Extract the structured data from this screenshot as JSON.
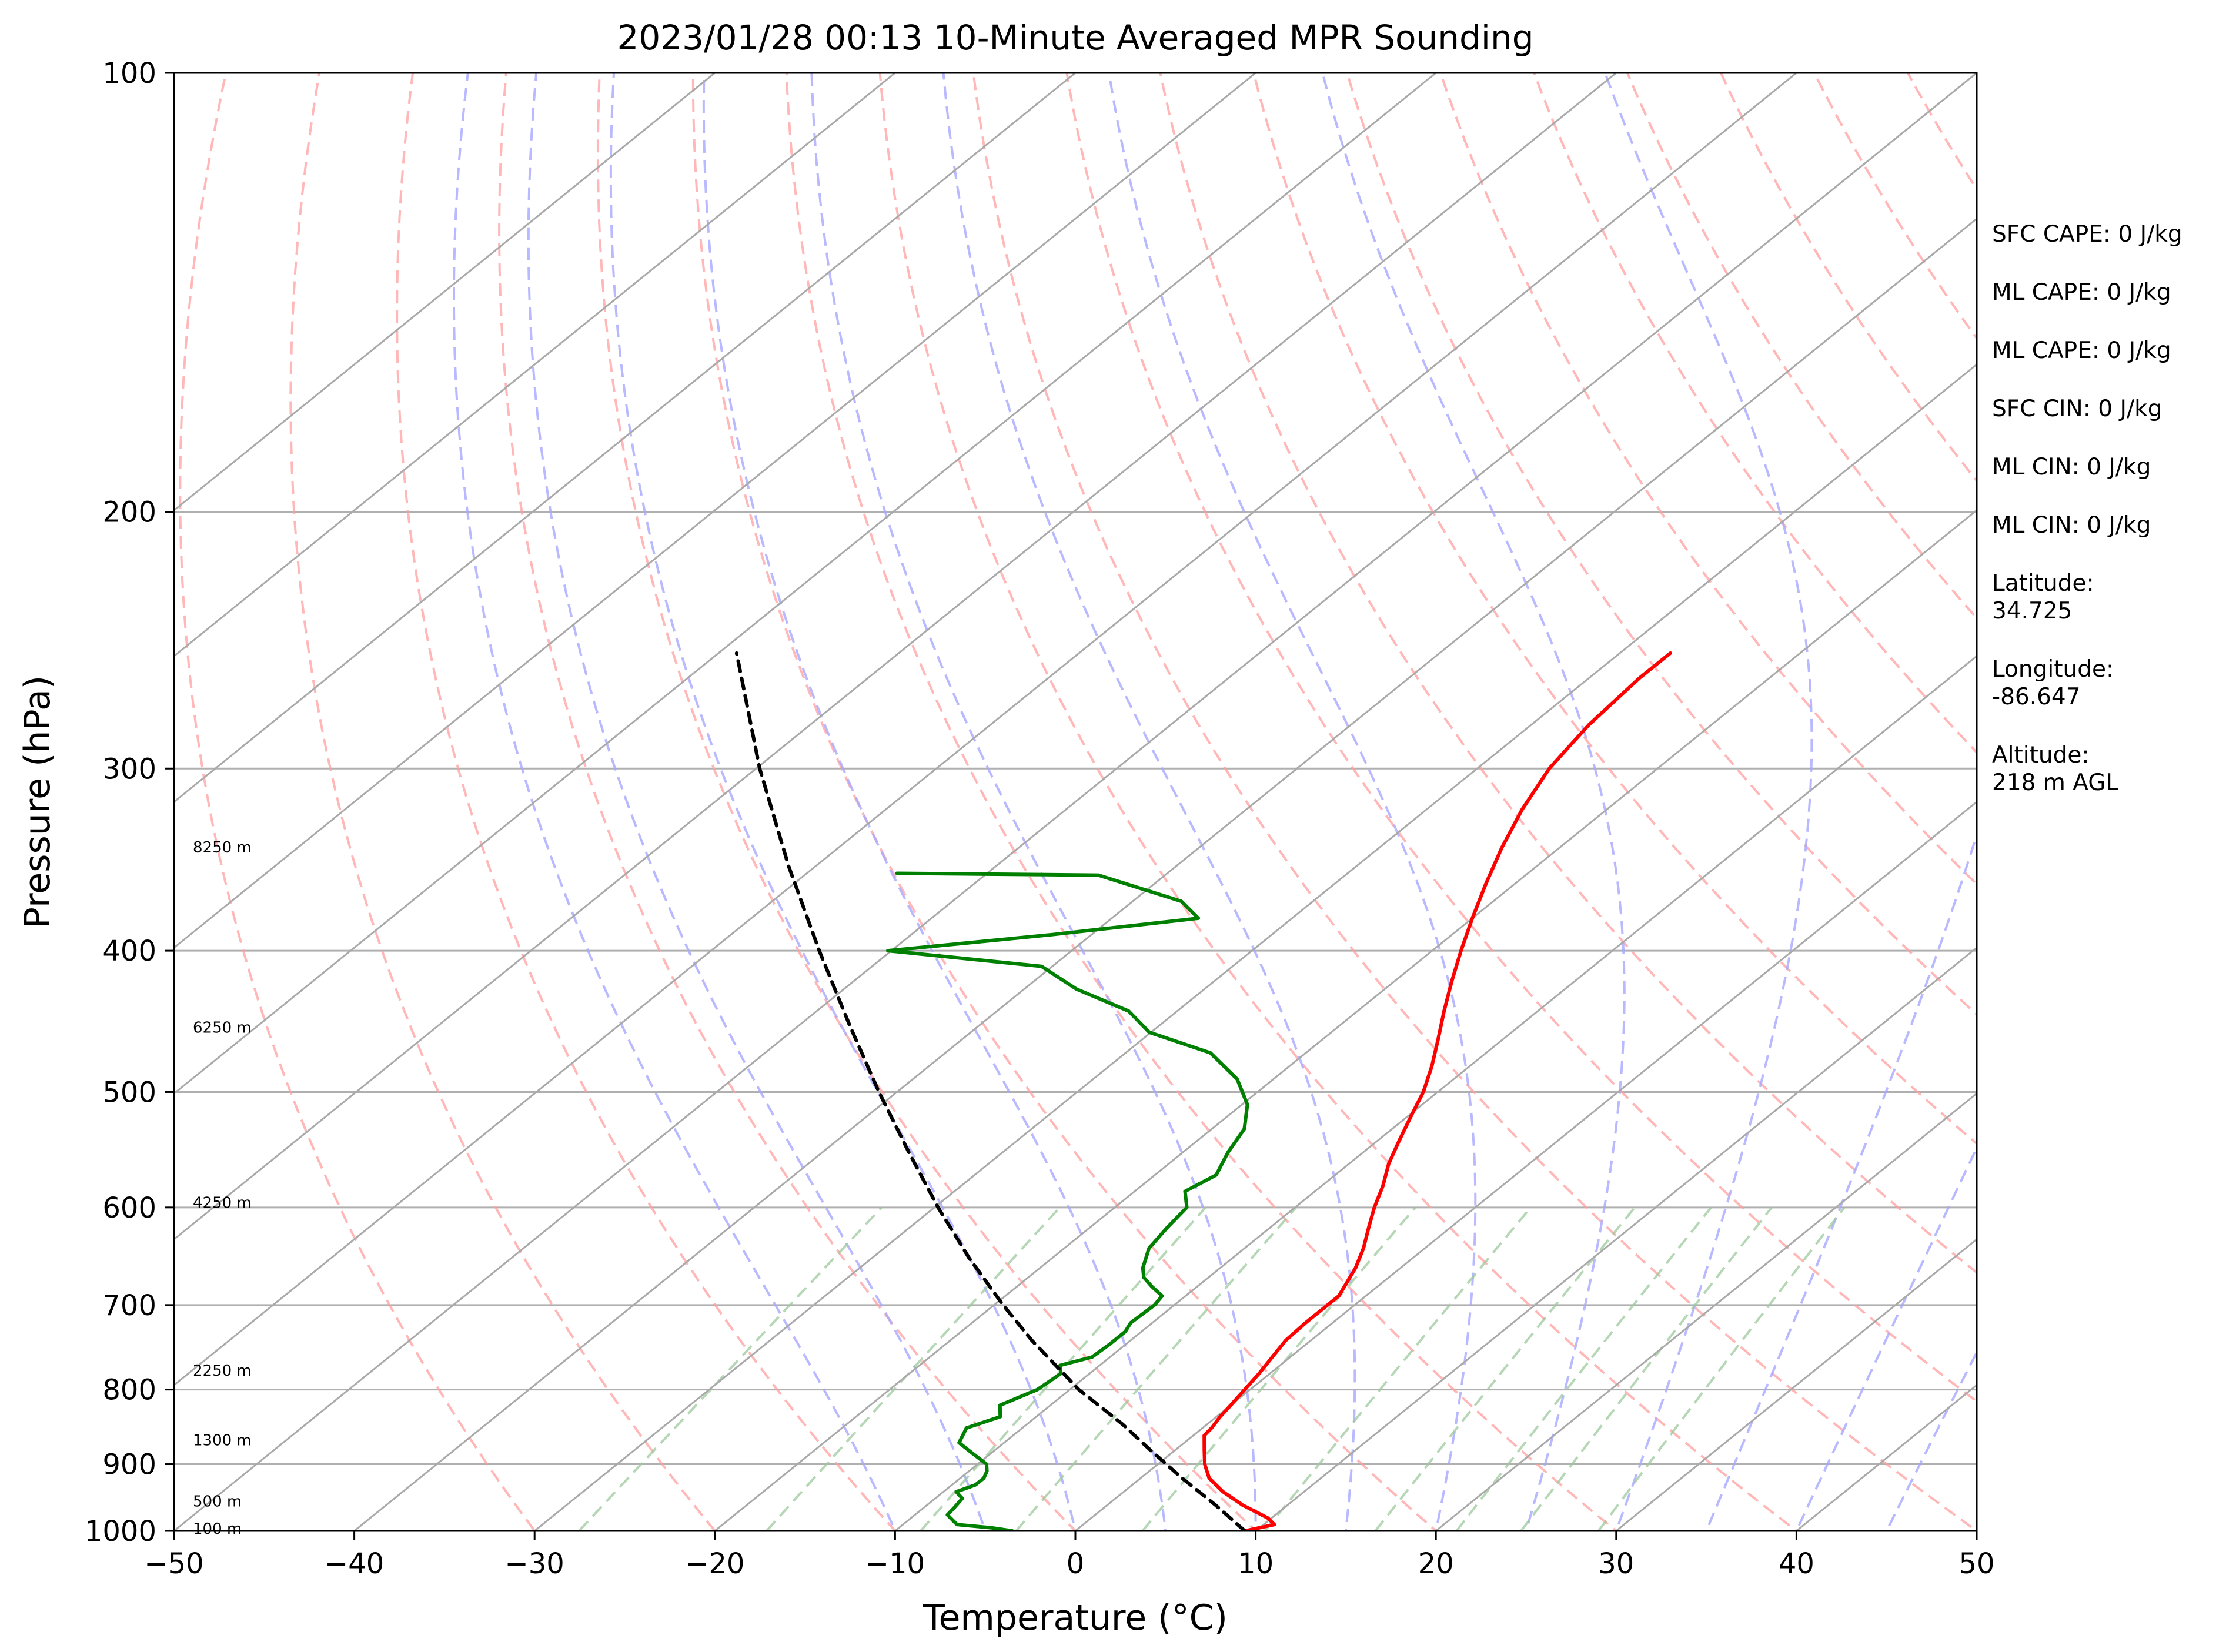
{
  "chart_data": {
    "type": "skew-t log-p",
    "title": "2023/01/28 00:13 10-Minute Averaged MPR Sounding",
    "xlabel": "Temperature (°C)",
    "ylabel": "Pressure (hPa)",
    "xlim": [
      -50,
      50
    ],
    "ylim": [
      1000,
      100
    ],
    "log_pressure": true,
    "x_ticks": [
      -50,
      -40,
      -30,
      -20,
      -10,
      0,
      10,
      20,
      30,
      40,
      50
    ],
    "x_tick_labels": [
      "−50",
      "−40",
      "−30",
      "−20",
      "−10",
      "0",
      "10",
      "20",
      "30",
      "40",
      "50"
    ],
    "y_ticks": [
      100,
      200,
      300,
      400,
      500,
      600,
      700,
      800,
      900,
      1000
    ],
    "y_tick_labels": [
      "100",
      "200",
      "300",
      "400",
      "500",
      "600",
      "700",
      "800",
      "900",
      "1000"
    ],
    "grid": "horizontal pressure lines",
    "isotherm_range": [
      -120,
      50
    ],
    "isotherm_step": 10,
    "dry_adiabat_thetas_c": [
      -30,
      -20,
      -10,
      0,
      10,
      20,
      30,
      40,
      50,
      60,
      70,
      80,
      90,
      100,
      110,
      120,
      130,
      140,
      150
    ],
    "moist_adiabat_starts_c": [
      -10,
      -5,
      0,
      5,
      10,
      15,
      20,
      25,
      30,
      35,
      40,
      45
    ],
    "mixing_ratios_gkg": [
      0.4,
      1,
      2,
      3,
      5,
      8,
      12,
      16,
      20,
      26
    ],
    "series": [
      {
        "key": "temperature",
        "color": "#ff0000",
        "points": [
          [
            1000,
            9.4
          ],
          [
            990,
            10.6
          ],
          [
            980,
            9.8
          ],
          [
            960,
            7.5
          ],
          [
            940,
            5.5
          ],
          [
            920,
            3.8
          ],
          [
            900,
            2.6
          ],
          [
            880,
            1.6
          ],
          [
            860,
            0.6
          ],
          [
            850,
            0.5
          ],
          [
            835,
            0.2
          ],
          [
            820,
            0.0
          ],
          [
            800,
            -0.3
          ],
          [
            780,
            -0.6
          ],
          [
            760,
            -1.0
          ],
          [
            740,
            -1.4
          ],
          [
            720,
            -1.5
          ],
          [
            700,
            -1.5
          ],
          [
            690,
            -1.5
          ],
          [
            660,
            -2.5
          ],
          [
            640,
            -3.4
          ],
          [
            620,
            -4.5
          ],
          [
            600,
            -5.6
          ],
          [
            580,
            -6.6
          ],
          [
            560,
            -7.8
          ],
          [
            540,
            -8.8
          ],
          [
            520,
            -9.8
          ],
          [
            500,
            -10.8
          ],
          [
            480,
            -12.1
          ],
          [
            460,
            -13.6
          ],
          [
            440,
            -15.2
          ],
          [
            420,
            -16.8
          ],
          [
            400,
            -18.4
          ],
          [
            380,
            -20.0
          ],
          [
            360,
            -21.6
          ],
          [
            340,
            -23.2
          ],
          [
            320,
            -24.7
          ],
          [
            300,
            -26.0
          ],
          [
            290,
            -26.4
          ],
          [
            280,
            -26.8
          ],
          [
            270,
            -27.0
          ],
          [
            260,
            -27.2
          ],
          [
            250,
            -27.2
          ]
        ]
      },
      {
        "key": "dewpoint",
        "color": "#008000",
        "points": [
          [
            1000,
            -3.5
          ],
          [
            995,
            -4.9
          ],
          [
            990,
            -7.0
          ],
          [
            985,
            -7.4
          ],
          [
            975,
            -8.2
          ],
          [
            965,
            -8.3
          ],
          [
            950,
            -8.5
          ],
          [
            940,
            -9.3
          ],
          [
            930,
            -8.7
          ],
          [
            920,
            -8.7
          ],
          [
            910,
            -9.0
          ],
          [
            900,
            -9.5
          ],
          [
            885,
            -11.0
          ],
          [
            870,
            -12.5
          ],
          [
            860,
            -12.8
          ],
          [
            850,
            -13.1
          ],
          [
            835,
            -12.0
          ],
          [
            820,
            -12.8
          ],
          [
            800,
            -11.8
          ],
          [
            780,
            -11.6
          ],
          [
            770,
            -12.2
          ],
          [
            760,
            -11.0
          ],
          [
            745,
            -10.9
          ],
          [
            730,
            -10.9
          ],
          [
            720,
            -11.2
          ],
          [
            700,
            -11.1
          ],
          [
            690,
            -11.3
          ],
          [
            680,
            -12.5
          ],
          [
            670,
            -13.6
          ],
          [
            660,
            -14.3
          ],
          [
            640,
            -15.3
          ],
          [
            620,
            -15.7
          ],
          [
            600,
            -16.0
          ],
          [
            585,
            -17.2
          ],
          [
            570,
            -16.6
          ],
          [
            550,
            -17.5
          ],
          [
            530,
            -18.2
          ],
          [
            510,
            -19.7
          ],
          [
            490,
            -22.0
          ],
          [
            470,
            -25.3
          ],
          [
            455,
            -30.1
          ],
          [
            440,
            -32.7
          ],
          [
            425,
            -37.1
          ],
          [
            410,
            -40.6
          ],
          [
            400,
            -50.2
          ],
          [
            390,
            -42.2
          ],
          [
            380,
            -35.2
          ],
          [
            370,
            -37.3
          ],
          [
            355,
            -43.7
          ],
          [
            354,
            -55.0
          ]
        ]
      },
      {
        "key": "parcel",
        "color": "#000000",
        "points": [
          [
            1000,
            9.4
          ],
          [
            960,
            6.0
          ],
          [
            920,
            2.3
          ],
          [
            880,
            -1.4
          ],
          [
            845,
            -4.7
          ],
          [
            800,
            -9.5
          ],
          [
            740,
            -15.5
          ],
          [
            700,
            -19.5
          ],
          [
            650,
            -24.6
          ],
          [
            600,
            -29.8
          ],
          [
            550,
            -35.2
          ],
          [
            500,
            -41.0
          ],
          [
            450,
            -47.2
          ],
          [
            400,
            -54.0
          ],
          [
            350,
            -61.5
          ],
          [
            300,
            -69.8
          ],
          [
            250,
            -79.0
          ]
        ]
      }
    ],
    "height_labels": [
      {
        "text": "8250 m",
        "p": 340
      },
      {
        "text": "6250 m",
        "p": 452
      },
      {
        "text": "4250 m",
        "p": 596
      },
      {
        "text": "2250 m",
        "p": 777
      },
      {
        "text": "1300 m",
        "p": 867
      },
      {
        "text": "500 m",
        "p": 955
      },
      {
        "text": "100 m",
        "p": 997
      }
    ]
  },
  "stats": {
    "sfc_cape": "SFC CAPE: 0 J/kg",
    "ml_cape_1": "ML CAPE: 0 J/kg",
    "ml_cape_2": "ML CAPE: 0 J/kg",
    "sfc_cin": "SFC CIN: 0 J/kg",
    "ml_cin_1": "ML CIN: 0 J/kg",
    "ml_cin_2": "ML CIN: 0 J/kg",
    "latitude_label": "Latitude:",
    "latitude_value": "34.725",
    "longitude_label": "Longitude:",
    "longitude_value": "-86.647",
    "altitude_label": "Altitude:",
    "altitude_value": "218 m AGL"
  },
  "colors": {
    "isotherm": "#a9a9a9",
    "dry_adiabat": "#ff9f9f",
    "moist_adiabat": "#a7a7ff",
    "mixing_ratio": "#9cc99c"
  }
}
